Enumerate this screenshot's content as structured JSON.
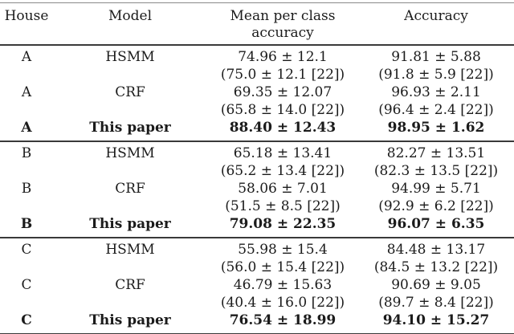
{
  "table": {
    "headers": [
      "House",
      "Model",
      "Mean per class accuracy",
      "Accuracy"
    ],
    "rows": [
      {
        "house": "A",
        "model": "HSMM",
        "mpca": "74.96 ± 12.1",
        "mpca_prev": "(75.0 ± 12.1 [22])",
        "acc": "91.81 ± 5.88",
        "acc_prev": "(91.8 ± 5.9 [22])",
        "bold": false,
        "section_end": false
      },
      {
        "house": "A",
        "model": "CRF",
        "mpca": "69.35 ± 12.07",
        "mpca_prev": "(65.8 ± 14.0 [22])",
        "acc": "96.93 ± 2.11",
        "acc_prev": "(96.4 ± 2.4 [22])",
        "bold": false,
        "section_end": false
      },
      {
        "house": "A",
        "model": "This paper",
        "mpca": "88.40 ± 12.43",
        "mpca_prev": "",
        "acc": "98.95 ± 1.62",
        "acc_prev": "",
        "bold": true,
        "section_end": true
      },
      {
        "house": "B",
        "model": "HSMM",
        "mpca": "65.18 ± 13.41",
        "mpca_prev": "(65.2 ± 13.4 [22])",
        "acc": "82.27 ± 13.51",
        "acc_prev": "(82.3 ± 13.5 [22])",
        "bold": false,
        "section_end": false
      },
      {
        "house": "B",
        "model": "CRF",
        "mpca": "58.06 ± 7.01",
        "mpca_prev": "(51.5 ± 8.5 [22])",
        "acc": "94.99 ± 5.71",
        "acc_prev": "(92.9 ± 6.2 [22])",
        "bold": false,
        "section_end": false
      },
      {
        "house": "B",
        "model": "This paper",
        "mpca": "79.08 ± 22.35",
        "mpca_prev": "",
        "acc": "96.07 ± 6.35",
        "acc_prev": "",
        "bold": true,
        "section_end": true
      },
      {
        "house": "C",
        "model": "HSMM",
        "mpca": "55.98 ± 15.4",
        "mpca_prev": "(56.0 ± 15.4 [22])",
        "acc": "84.48 ± 13.17",
        "acc_prev": "(84.5 ± 13.2 [22])",
        "bold": false,
        "section_end": false
      },
      {
        "house": "C",
        "model": "CRF",
        "mpca": "46.79 ± 15.63",
        "mpca_prev": "(40.4 ± 16.0 [22])",
        "acc": "90.69 ± 9.05",
        "acc_prev": "(89.7 ± 8.4 [22])",
        "bold": false,
        "section_end": false
      },
      {
        "house": "C",
        "model": "This paper",
        "mpca": "76.54 ± 18.99",
        "mpca_prev": "",
        "acc": "94.10 ± 15.27",
        "acc_prev": "",
        "bold": true,
        "section_end": true
      }
    ]
  }
}
